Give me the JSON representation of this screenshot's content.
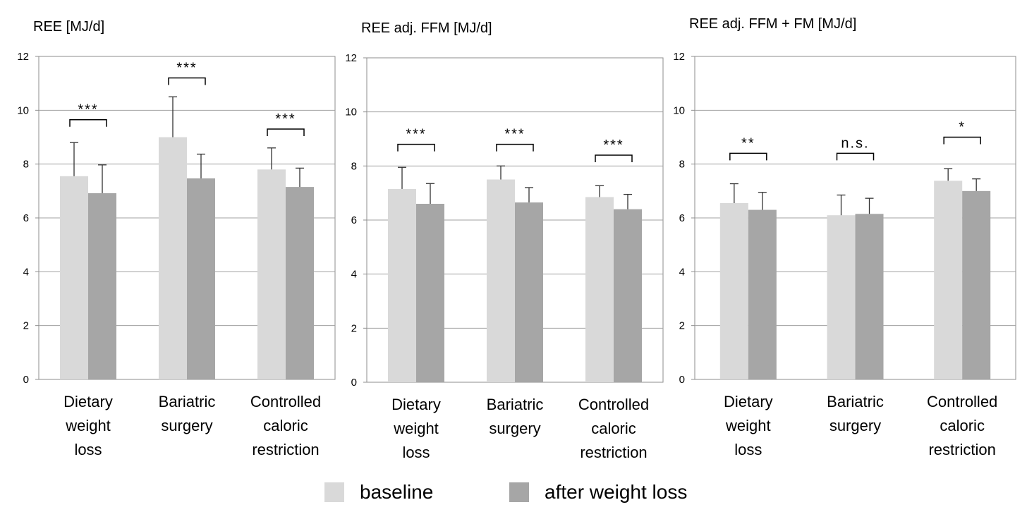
{
  "chart_data": [
    {
      "type": "bar",
      "title": "REE [MJ/d]",
      "ylim": [
        0,
        12
      ],
      "yticks": [
        0,
        2,
        4,
        6,
        8,
        10,
        12
      ],
      "grid": true,
      "categories": [
        [
          "Dietary",
          "weight",
          "loss"
        ],
        [
          "Bariatric",
          "surgery"
        ],
        [
          "Controlled",
          "caloric",
          "restriction"
        ]
      ],
      "series": [
        {
          "name": "baseline",
          "values": [
            7.55,
            9.0,
            7.8
          ],
          "errors": [
            1.25,
            1.5,
            0.8
          ]
        },
        {
          "name": "after weight loss",
          "values": [
            6.92,
            7.47,
            7.15
          ],
          "errors": [
            1.05,
            0.9,
            0.7
          ]
        }
      ],
      "significance": [
        "***",
        "***",
        "***"
      ],
      "bracket_y": [
        9.65,
        11.2,
        9.3
      ]
    },
    {
      "type": "bar",
      "title": "REE adj. FFM [MJ/d]",
      "ylim": [
        0,
        12
      ],
      "yticks": [
        0,
        2,
        4,
        6,
        8,
        10,
        12
      ],
      "grid": true,
      "categories": [
        [
          "Dietary",
          "weight",
          "loss"
        ],
        [
          "Bariatric",
          "surgery"
        ],
        [
          "Controlled",
          "caloric",
          "restriction"
        ]
      ],
      "series": [
        {
          "name": "baseline",
          "values": [
            7.15,
            7.5,
            6.85
          ],
          "errors": [
            0.8,
            0.5,
            0.42
          ]
        },
        {
          "name": "after weight loss",
          "values": [
            6.6,
            6.65,
            6.4
          ],
          "errors": [
            0.75,
            0.55,
            0.55
          ]
        }
      ],
      "significance": [
        "***",
        "***",
        "***"
      ],
      "bracket_y": [
        8.8,
        8.8,
        8.4
      ]
    },
    {
      "type": "bar",
      "title": "REE adj. FFM + FM [MJ/d]",
      "ylim": [
        0,
        12
      ],
      "yticks": [
        0,
        2,
        4,
        6,
        8,
        10,
        12
      ],
      "grid": true,
      "categories": [
        [
          "Dietary",
          "weight",
          "loss"
        ],
        [
          "Bariatric",
          "surgery"
        ],
        [
          "Controlled",
          "caloric",
          "restriction"
        ]
      ],
      "series": [
        {
          "name": "baseline",
          "values": [
            6.55,
            6.1,
            7.38
          ],
          "errors": [
            0.72,
            0.75,
            0.45
          ]
        },
        {
          "name": "after weight loss",
          "values": [
            6.3,
            6.15,
            7.0
          ],
          "errors": [
            0.65,
            0.58,
            0.45
          ]
        }
      ],
      "significance": [
        "**",
        "n.s.",
        "*"
      ],
      "bracket_y": [
        8.4,
        8.4,
        9.0
      ]
    }
  ],
  "legend": [
    {
      "label": "baseline",
      "color": "#d9d9d9"
    },
    {
      "label": "after weight loss",
      "color": "#a6a6a6"
    }
  ],
  "colors": {
    "baseline": "#d9d9d9",
    "after": "#a6a6a6",
    "grid": "#a0a0a0",
    "axis": "#8c8c8c",
    "error": "#333333"
  }
}
